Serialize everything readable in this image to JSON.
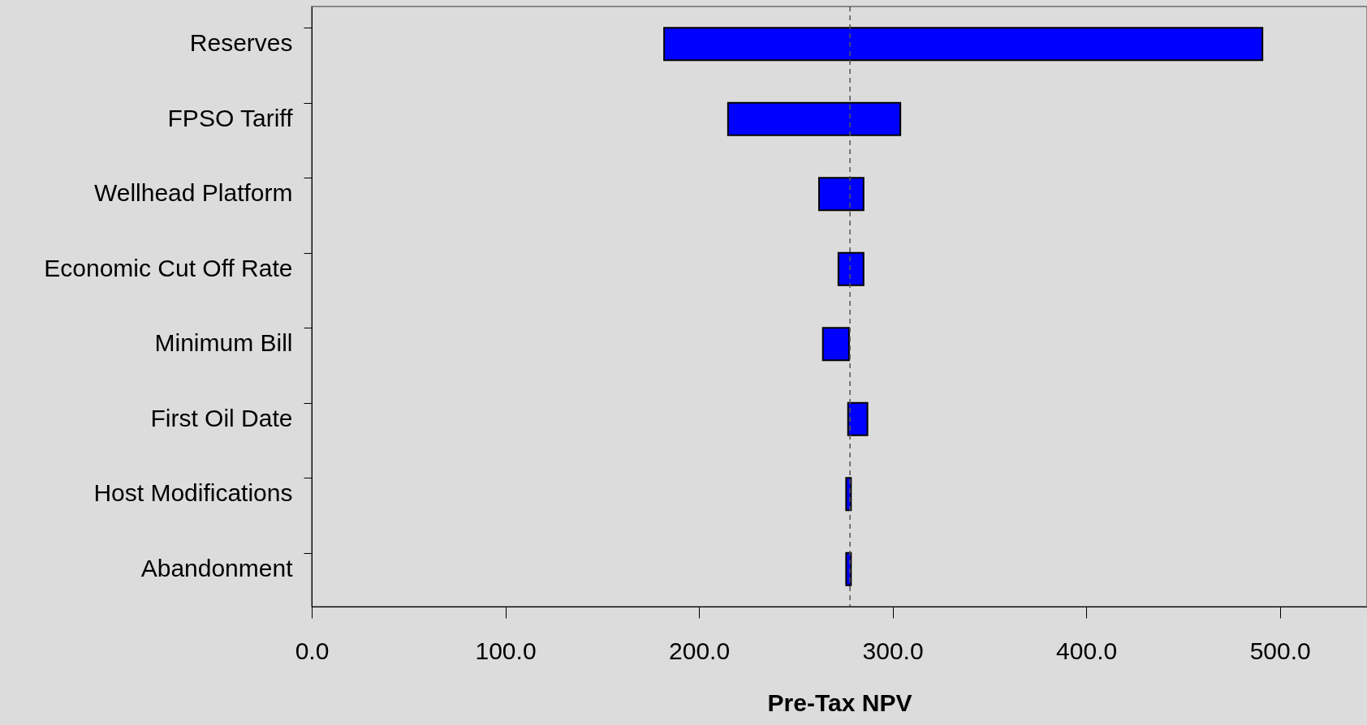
{
  "chart_data": {
    "type": "bar",
    "orientation": "horizontal",
    "xlabel": "Pre-Tax NPV",
    "categories": [
      "Reserves",
      "FPSO Tariff",
      "Wellhead Platform",
      "Economic Cut Off Rate",
      "Minimum Bill",
      "First Oil Date",
      "Host Modifications",
      "Abandonment"
    ],
    "series": [
      {
        "color": "#0000ff",
        "base": [
          182,
          215,
          262,
          272,
          264,
          277,
          276,
          276
        ],
        "values": [
          309,
          89,
          23,
          13,
          13.5,
          10,
          2.5,
          2.5
        ]
      }
    ],
    "xlim": [
      0,
      545
    ],
    "xticks": [
      {
        "value": 0,
        "label": "0.0"
      },
      {
        "value": 100,
        "label": "100.0"
      },
      {
        "value": 200,
        "label": "200.0"
      },
      {
        "value": 300,
        "label": "300.0"
      },
      {
        "value": 400,
        "label": "400.0"
      },
      {
        "value": 500,
        "label": "500.0"
      }
    ],
    "ref_lines": [
      {
        "axis": "x",
        "value": 278,
        "line_style": "dashed"
      }
    ],
    "grid": false
  }
}
